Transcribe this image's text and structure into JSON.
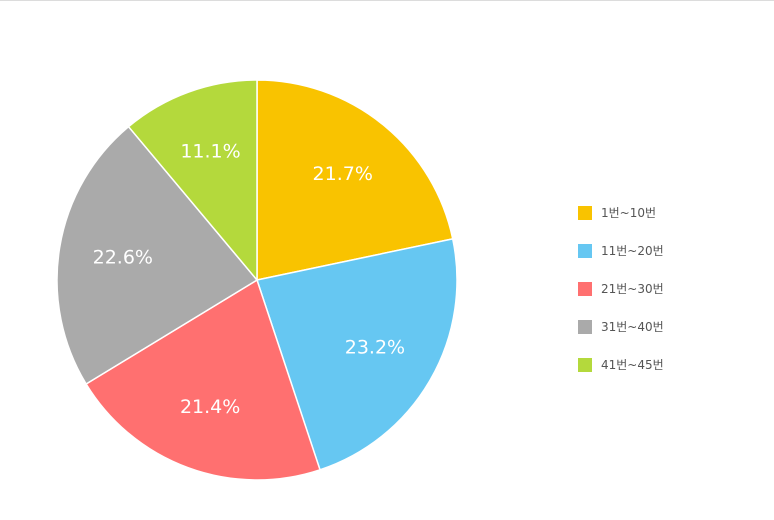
{
  "chart_data": {
    "type": "pie",
    "categories": [
      "1번~10번",
      "11번~20번",
      "21번~30번",
      "31번~40번",
      "41번~45번"
    ],
    "values": [
      21.7,
      23.2,
      21.4,
      22.6,
      11.1
    ],
    "value_labels": [
      "21.7%",
      "23.2%",
      "21.4%",
      "22.6%",
      "11.1%"
    ],
    "colors": [
      "#F9C300",
      "#66C7F2",
      "#FF7070",
      "#AAAAAA",
      "#B4D93C"
    ],
    "start": "12 o'clock",
    "direction": "clockwise",
    "legend": "right",
    "title": ""
  }
}
